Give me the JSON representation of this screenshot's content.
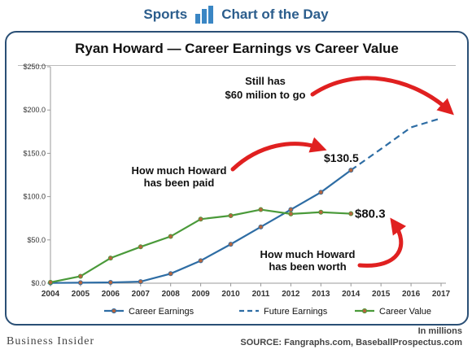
{
  "header": {
    "left_label": "Sports",
    "right_label": "Chart of the Day"
  },
  "footer": {
    "brand": "Business Insider",
    "units": "In millions",
    "source": "SOURCE: Fangraphs.com, BaseballProspectus.com"
  },
  "colors": {
    "earnings": "#2e6da4",
    "value": "#4a9a3a",
    "marker": "#b5653e",
    "arrow": "#e02020",
    "brand": "#2b5d8c"
  },
  "chart_data": {
    "type": "line",
    "title": "Ryan Howard — Career Earnings vs Career Value",
    "x": [
      "2004",
      "2005",
      "2006",
      "2007",
      "2008",
      "2009",
      "2010",
      "2011",
      "2012",
      "2013",
      "2014",
      "2015",
      "2016",
      "2017"
    ],
    "ylim": [
      0,
      250
    ],
    "yticks": [
      "$0.0",
      "$50.0",
      "$100.0",
      "$150.0",
      "$200.0",
      "$250.0"
    ],
    "ytick_values": [
      0,
      50,
      100,
      150,
      200,
      250
    ],
    "grid": false,
    "legend_position": "bottom",
    "series": [
      {
        "name": "Career Earnings",
        "x": [
          "2004",
          "2005",
          "2006",
          "2007",
          "2008",
          "2009",
          "2010",
          "2011",
          "2012",
          "2013",
          "2014"
        ],
        "values": [
          0.3,
          0.6,
          0.9,
          1.8,
          11,
          26,
          45,
          65,
          85,
          105,
          130.5
        ],
        "style": "solid",
        "markers": true
      },
      {
        "name": "Future Earnings",
        "x": [
          "2014",
          "2015",
          "2016",
          "2017"
        ],
        "values": [
          130.5,
          155,
          180,
          190.5
        ],
        "style": "dashed",
        "markers": false
      },
      {
        "name": "Career Value",
        "x": [
          "2004",
          "2005",
          "2006",
          "2007",
          "2008",
          "2009",
          "2010",
          "2011",
          "2012",
          "2013",
          "2014"
        ],
        "values": [
          1,
          8,
          29,
          42,
          54,
          74,
          78,
          85,
          80,
          82,
          80.3
        ],
        "style": "solid",
        "markers": true
      }
    ],
    "annotations": [
      {
        "id": "earnings-end",
        "text": "$130.5"
      },
      {
        "id": "value-end",
        "text": "$80.3"
      },
      {
        "id": "still-has",
        "lines": [
          "Still has",
          "$60 milion to go"
        ]
      },
      {
        "id": "paid",
        "lines": [
          "How much Howard",
          "has been paid"
        ]
      },
      {
        "id": "worth",
        "lines": [
          "How much Howard",
          "has been worth"
        ]
      }
    ]
  }
}
